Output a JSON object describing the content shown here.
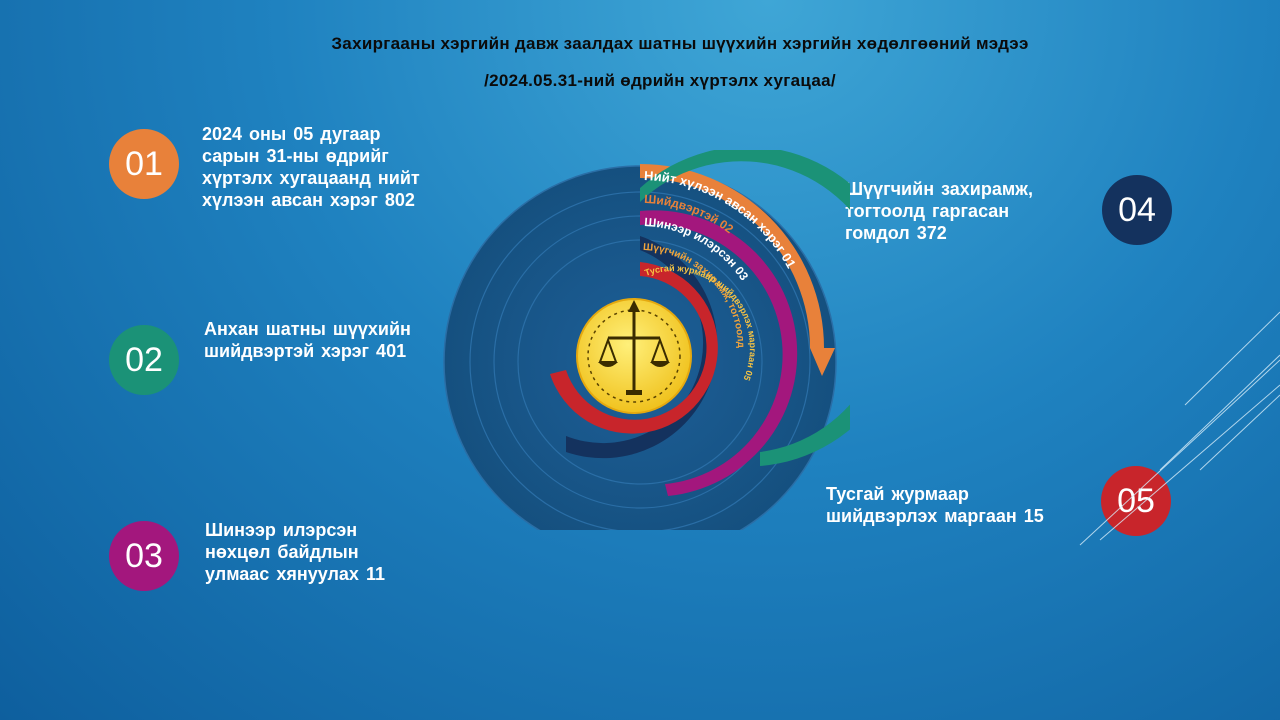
{
  "title": {
    "line1": "Захиргааны хэргийн давж заалдах шатны шүүхийн хэргийн хөдөлгөөний мэдээ",
    "line2": "/2024.05.31-ний өдрийн хүртэлх хугацаа/"
  },
  "items": [
    {
      "num": "01",
      "color": "#e8813a",
      "lines": [
        "2024 оны 05 дугаар",
        "сарын 31-ны өдрийг",
        "хүртэлх хугацаанд нийт",
        "хүлээн авсан хэрэг 802"
      ]
    },
    {
      "num": "02",
      "color": "#1b9277",
      "lines": [
        "Анхан шатны шүүхийн",
        "шийдвэртэй хэрэг 401"
      ]
    },
    {
      "num": "03",
      "color": "#a3177d",
      "lines": [
        "Шинээр илэрсэн",
        "нөхцөл байдлын",
        "улмаас хянуулах 11"
      ]
    },
    {
      "num": "04",
      "color": "#14325e",
      "lines": [
        "Шүүгчийн захирамж,",
        "тогтоолд гаргасан",
        "гомдол 372"
      ]
    },
    {
      "num": "05",
      "color": "#c8252b",
      "lines": [
        "Тусгай журмаар",
        "шийдвэрлэх маргаан 15"
      ]
    }
  ],
  "rings": [
    {
      "label": "Нийт хүлээн авсан хэрэг 01",
      "color": "#e8813a",
      "text_color": "#ffffff"
    },
    {
      "label": "Шийдвэртэй 02",
      "color": "#1b9277",
      "text_color": "#e8813a"
    },
    {
      "label": "Шинээр илэрсэн 03",
      "color": "#a3177d",
      "text_color": "#ffffff"
    },
    {
      "label": "Шүүгчийн захирамж, тогтоолд гаргасан гомдол 04",
      "color": "#14325e",
      "text_color": "#f3a43a"
    },
    {
      "label": "Тусгай журмаар шийдвэрлэх маргаан 05",
      "color": "#c8252b",
      "text_color": "#f6c343"
    }
  ]
}
